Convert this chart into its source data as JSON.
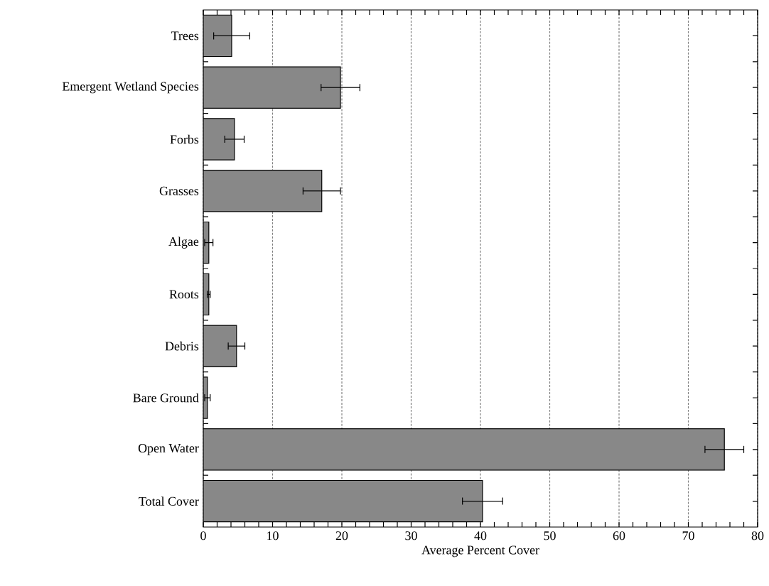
{
  "chart_data": {
    "type": "bar",
    "orientation": "horizontal",
    "xlabel": "Average Percent Cover",
    "categories": [
      "Trees",
      "Emergent Wetland Species",
      "Forbs",
      "Grasses",
      "Algae",
      "Roots",
      "Debris",
      "Bare Ground",
      "Open Water",
      "Total Cover"
    ],
    "values": [
      4.1,
      19.8,
      4.5,
      17.1,
      0.8,
      0.8,
      4.8,
      0.6,
      75.2,
      40.3
    ],
    "errors": [
      2.6,
      2.8,
      1.4,
      2.7,
      0.6,
      0.2,
      1.2,
      0.4,
      2.8,
      2.9
    ],
    "color": "#888888",
    "xlim": [
      0,
      80
    ],
    "xticks": [
      0,
      10,
      20,
      30,
      40,
      50,
      60,
      70,
      80
    ],
    "grid": "x"
  }
}
